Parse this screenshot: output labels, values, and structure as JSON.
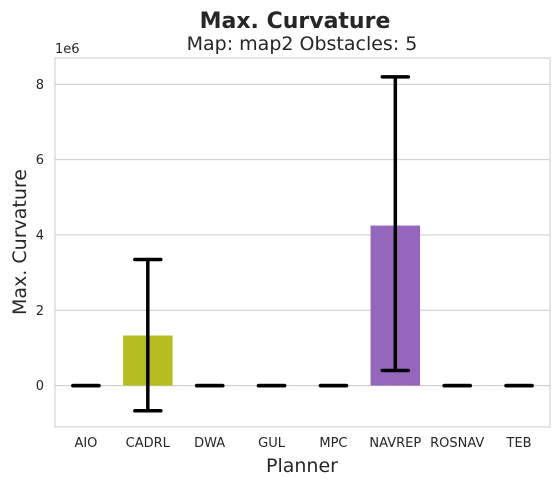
{
  "chart_data": {
    "type": "bar",
    "suptitle": "Max. Curvature",
    "title": "Map: map2 Obstacles: 5",
    "xlabel": "Planner",
    "ylabel": "Max. Curvature",
    "y_offset_label": "1e6",
    "categories": [
      "AIO",
      "CADRL",
      "DWA",
      "GUL",
      "MPC",
      "NAVREP",
      "ROSNAV",
      "TEB"
    ],
    "values": [
      0,
      1.33,
      0,
      0,
      0,
      4.25,
      0,
      0
    ],
    "error_low": [
      0,
      -0.67,
      0,
      0,
      0,
      0.4,
      0,
      0
    ],
    "error_high": [
      0,
      3.35,
      0,
      0,
      0,
      8.2,
      0,
      0
    ],
    "colors": [
      "#4c72b0",
      "#b5bd20",
      "#8c8c8c",
      "#c6a36a",
      "#64b5cd",
      "#9467bd",
      "#8c564b",
      "#e377c2"
    ],
    "ylim": [
      -1.1,
      8.7
    ],
    "yticks": [
      0,
      2,
      4,
      6,
      8
    ],
    "grid": true,
    "legend": "none"
  }
}
